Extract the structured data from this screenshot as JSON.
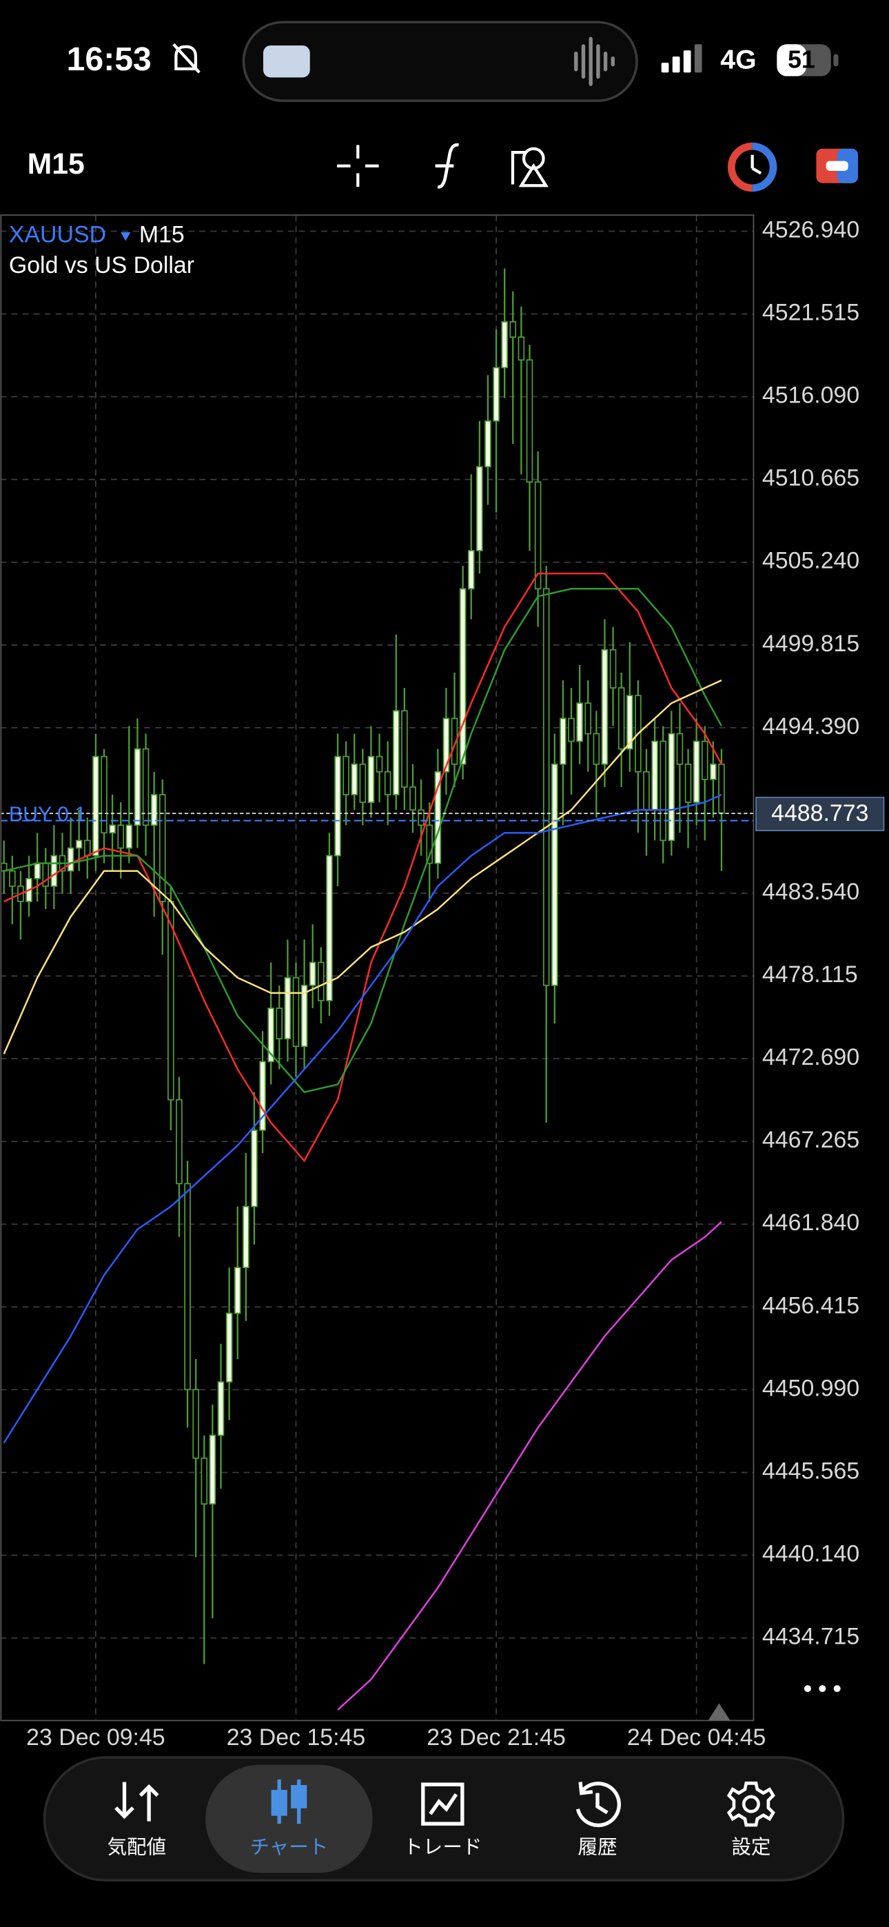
{
  "status": {
    "time": "16:53",
    "network": "4G",
    "battery": "51"
  },
  "toolbar": {
    "timeframe": "M15"
  },
  "chart_data": {
    "type": "candlestick",
    "symbol": "XAUUSD",
    "timeframe": "M15",
    "description": "Gold vs US Dollar",
    "xlim": [
      -0.44,
      89.84
    ],
    "ylim": [
      4429.3,
      4528.0
    ],
    "grid": true,
    "xticks": [
      {
        "value": 11,
        "label": "23 Dec 09:45"
      },
      {
        "value": 35,
        "label": "23 Dec 15:45"
      },
      {
        "value": 59,
        "label": "23 Dec 21:45"
      },
      {
        "value": 83,
        "label": "24 Dec 04:45"
      }
    ],
    "yticks": [
      {
        "value": 4526.94,
        "label": "4526.940"
      },
      4521.515,
      {
        "value": 4516.09,
        "label": "4516.090"
      },
      4510.665,
      {
        "value": 4505.24,
        "label": "4505.240"
      },
      4499.815,
      {
        "value": 4494.39,
        "label": "4494.390"
      },
      {
        "value": 4483.54,
        "label": "4483.540"
      },
      4478.115,
      {
        "value": 4472.69,
        "label": "4472.690"
      },
      4467.265,
      {
        "value": 4461.84,
        "label": "4461.840"
      },
      4456.415,
      {
        "value": 4450.99,
        "label": "4450.990"
      },
      4445.565,
      {
        "value": 4440.14,
        "label": "4440.140"
      },
      4434.715
    ],
    "candles": {
      "up_color": "#f2fbe4",
      "down_color": "#000000",
      "wick_color": "#4f9a35",
      "open": [
        4485.5,
        4485.0,
        4484.0,
        4483.0,
        4484.5,
        4485.5,
        4484.0,
        4486.0,
        4485.0,
        4486.5,
        4487.0,
        4486.0,
        4492.5,
        4487.5,
        4488.0,
        4486.5,
        4488.0,
        4493.0,
        4488.0,
        4490.0,
        4483.0,
        4470.0,
        4464.5,
        4451.0,
        4446.5,
        4443.5,
        4448.0,
        4451.5,
        4456.0,
        4459.0,
        4463.0,
        4468.0,
        4472.5,
        4476.0,
        4474.0,
        4478.0,
        4473.5,
        4477.5,
        4479.0,
        4476.5,
        4486.0,
        4492.5,
        4490.0,
        4492.0,
        4489.5,
        4492.5,
        4491.5,
        4490.0,
        4495.5,
        4490.5,
        4489.0,
        4488.0,
        4485.5,
        4491.5,
        4495.0,
        4492.0,
        4503.5,
        4506.0,
        4511.5,
        4514.5,
        4518.0,
        4521.0,
        4520.0,
        4518.5,
        4510.5,
        4503.5,
        4477.5,
        4492.0,
        4495.0,
        4493.5,
        4496.0,
        4494.0,
        4492.0,
        4499.5,
        4497.0,
        4493.0,
        4496.5,
        4491.5,
        4489.0,
        4493.5,
        4487.0,
        4494.0,
        4492.0,
        4489.5,
        4493.5,
        4491.0,
        4492.0
      ],
      "high": [
        4487.0,
        4486.0,
        4485.0,
        4486.0,
        4487.5,
        4486.5,
        4488.0,
        4487.5,
        4488.5,
        4489.0,
        4488.5,
        4494.0,
        4493.0,
        4490.0,
        4489.5,
        4494.5,
        4495.0,
        4494.0,
        4491.5,
        4491.0,
        4484.0,
        4471.5,
        4466.0,
        4453.0,
        4448.0,
        4450.0,
        4454.0,
        4459.0,
        4463.0,
        4466.5,
        4470.5,
        4474.5,
        4479.0,
        4477.5,
        4480.5,
        4479.0,
        4480.5,
        4481.5,
        4480.0,
        4487.5,
        4494.0,
        4493.5,
        4494.0,
        4493.0,
        4494.5,
        4494.0,
        4493.5,
        4500.5,
        4497.0,
        4492.0,
        4491.0,
        4489.5,
        4493.0,
        4497.0,
        4498.0,
        4505.0,
        4511.0,
        4514.5,
        4517.5,
        4520.5,
        4524.5,
        4523.0,
        4522.0,
        4519.5,
        4512.5,
        4505.0,
        4494.0,
        4497.5,
        4497.0,
        4498.5,
        4497.5,
        4495.5,
        4501.5,
        4501.0,
        4498.0,
        4500.0,
        4497.5,
        4493.0,
        4495.0,
        4494.5,
        4495.5,
        4496.0,
        4493.0,
        4495.0,
        4494.5,
        4493.5,
        4493.0
      ],
      "low": [
        4483.5,
        4481.5,
        4480.5,
        4482.0,
        4483.0,
        4482.5,
        4482.5,
        4483.5,
        4483.5,
        4485.0,
        4484.5,
        4485.0,
        4485.5,
        4485.0,
        4484.5,
        4485.5,
        4486.5,
        4486.0,
        4482.0,
        4479.5,
        4468.0,
        4461.0,
        4448.5,
        4440.0,
        4433.0,
        4436.0,
        4444.5,
        4449.0,
        4453.0,
        4455.5,
        4460.5,
        4466.5,
        4471.0,
        4472.0,
        4472.5,
        4471.5,
        4472.0,
        4476.0,
        4475.0,
        4475.5,
        4484.0,
        4488.0,
        4489.0,
        4488.0,
        4488.5,
        4489.5,
        4488.0,
        4489.0,
        4489.0,
        4487.5,
        4486.0,
        4483.0,
        4484.5,
        4490.0,
        4490.5,
        4491.0,
        4501.5,
        4504.5,
        4509.0,
        4508.5,
        4516.0,
        4513.0,
        4511.0,
        4506.0,
        4501.0,
        4468.5,
        4475.0,
        4488.0,
        4490.0,
        4492.0,
        4491.5,
        4488.5,
        4490.5,
        4494.5,
        4490.5,
        4491.5,
        4487.5,
        4486.0,
        4487.0,
        4485.5,
        4486.0,
        4487.5,
        4486.5,
        4488.0,
        4487.0,
        4488.5,
        4485.0
      ],
      "close": [
        4485.0,
        4484.0,
        4483.0,
        4484.5,
        4485.5,
        4484.0,
        4486.0,
        4485.0,
        4486.5,
        4487.0,
        4486.0,
        4492.5,
        4487.5,
        4488.0,
        4486.5,
        4488.0,
        4493.0,
        4488.0,
        4490.0,
        4483.0,
        4470.0,
        4464.5,
        4451.0,
        4446.5,
        4443.5,
        4448.0,
        4451.5,
        4456.0,
        4459.0,
        4463.0,
        4468.0,
        4472.5,
        4476.0,
        4474.0,
        4478.0,
        4473.5,
        4477.5,
        4479.0,
        4476.5,
        4486.0,
        4492.5,
        4490.0,
        4492.0,
        4489.5,
        4492.5,
        4491.5,
        4490.0,
        4495.5,
        4490.5,
        4489.0,
        4488.0,
        4485.5,
        4491.5,
        4495.0,
        4492.0,
        4503.5,
        4506.0,
        4511.5,
        4514.5,
        4518.0,
        4521.0,
        4520.0,
        4518.5,
        4510.5,
        4503.5,
        4477.5,
        4492.0,
        4495.0,
        4493.5,
        4496.0,
        4494.0,
        4492.0,
        4499.5,
        4497.0,
        4493.0,
        4496.5,
        4491.5,
        4489.0,
        4493.5,
        4487.0,
        4494.0,
        4492.0,
        4489.5,
        4493.5,
        4491.0,
        4492.0,
        4488.8
      ]
    },
    "series": [
      {
        "color": "#ff2a2a",
        "x": [
          0,
          4,
          8,
          12,
          16,
          20,
          24,
          28,
          32,
          36,
          40,
          44,
          48,
          52,
          56,
          60,
          64,
          68,
          72,
          76,
          80,
          84,
          86
        ],
        "values": [
          4483.0,
          4484.0,
          4485.5,
          4486.5,
          4486.0,
          4481.5,
          4476.5,
          4472.0,
          4468.5,
          4466.0,
          4470.0,
          4479.0,
          4484.0,
          4490.5,
          4496.0,
          4501.0,
          4504.5,
          4504.5,
          4504.5,
          4502.0,
          4497.0,
          4494.0,
          4492.0
        ]
      },
      {
        "color": "#2f9a2f",
        "x": [
          0,
          4,
          8,
          12,
          16,
          20,
          24,
          28,
          32,
          36,
          40,
          44,
          48,
          52,
          56,
          60,
          64,
          68,
          72,
          76,
          80,
          84,
          86
        ],
        "values": [
          4485.0,
          4485.5,
          4485.5,
          4486.0,
          4486.0,
          4484.0,
          4480.0,
          4475.5,
          4473.0,
          4470.5,
          4471.0,
          4475.0,
          4481.5,
          4487.5,
          4494.0,
          4499.5,
          4503.0,
          4503.5,
          4503.5,
          4503.5,
          4501.0,
          4496.5,
          4494.5
        ]
      },
      {
        "color": "#ffe27a",
        "x": [
          0,
          4,
          8,
          12,
          16,
          20,
          24,
          28,
          32,
          36,
          40,
          44,
          48,
          52,
          56,
          60,
          64,
          68,
          72,
          76,
          80,
          84,
          86
        ],
        "values": [
          4473.0,
          4478.0,
          4482.0,
          4485.0,
          4485.0,
          4483.0,
          4480.0,
          4478.0,
          4477.0,
          4477.0,
          4478.0,
          4480.0,
          4481.0,
          4482.5,
          4484.5,
          4486.0,
          4487.5,
          4489.0,
          4491.5,
          4494.0,
          4496.0,
          4497.0,
          4497.5
        ]
      },
      {
        "color": "#2a5cff",
        "x": [
          0,
          4,
          8,
          12,
          16,
          20,
          24,
          28,
          32,
          36,
          40,
          44,
          48,
          52,
          56,
          60,
          64,
          68,
          72,
          76,
          80,
          84,
          86
        ],
        "values": [
          4447.5,
          4451.0,
          4454.5,
          4458.5,
          4461.5,
          4463.0,
          4465.0,
          4467.0,
          4469.5,
          4472.0,
          4474.5,
          4477.5,
          4480.5,
          4484.0,
          4486.0,
          4487.5,
          4487.5,
          4488.0,
          4488.5,
          4489.0,
          4489.0,
          4489.5,
          4490.0
        ]
      },
      {
        "color": "#e040e0",
        "x": [
          40,
          44,
          48,
          52,
          56,
          60,
          64,
          68,
          72,
          76,
          80,
          84,
          86
        ],
        "values": [
          4430.0,
          4432.0,
          4435.0,
          4438.0,
          4441.5,
          4445.0,
          4448.5,
          4451.5,
          4454.5,
          4457.0,
          4459.5,
          4461.0,
          4462.0
        ]
      }
    ],
    "order": {
      "label": "BUY 0.1",
      "price": 4488.3,
      "color": "#3d7bff"
    },
    "price": 4488.773
  },
  "tabs": {
    "labels": [
      "気配値",
      "チャート",
      "トレード",
      "履歴",
      "設定"
    ],
    "active": 1
  }
}
